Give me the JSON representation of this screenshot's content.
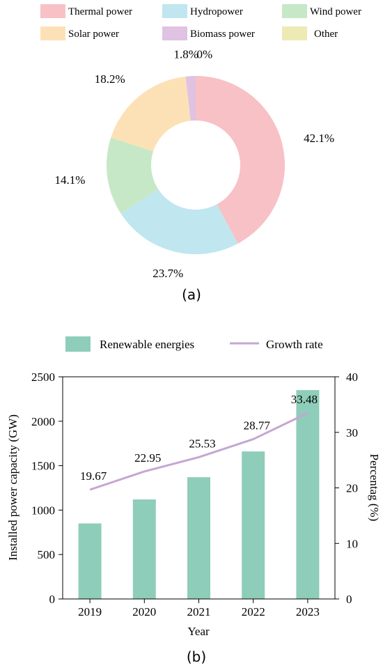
{
  "panel_a": {
    "caption": "(a)"
  },
  "panel_b": {
    "caption": "(b)"
  },
  "chart_data": [
    {
      "type": "pie",
      "donut": true,
      "legend_position": "top",
      "categories": [
        "Thermal power",
        "Hydropower",
        "Wind power",
        "Solar power",
        "Biomass power",
        "Other"
      ],
      "values": [
        42.1,
        23.7,
        14.1,
        18.2,
        1.8,
        0
      ],
      "labels": [
        "42.1%",
        "23.7%",
        "14.1%",
        "18.2%",
        "1.8%",
        "0%"
      ],
      "colors": [
        "#f7c1c6",
        "#c0e6ef",
        "#c6e8c6",
        "#fde1b6",
        "#e0c2e2",
        "#eeeab4"
      ]
    },
    {
      "type": "bar",
      "categories": [
        "2019",
        "2020",
        "2021",
        "2022",
        "2023"
      ],
      "series": [
        {
          "name": "Renewable energies",
          "type": "bar",
          "axis": "left",
          "values": [
            850,
            1120,
            1370,
            1660,
            2350
          ],
          "color": "#8ecdb9"
        },
        {
          "name": "Growth rate",
          "type": "line",
          "axis": "right",
          "values": [
            19.67,
            22.95,
            25.53,
            28.77,
            33.48
          ],
          "labels": [
            "19.67",
            "22.95",
            "25.53",
            "28.77",
            "33.48"
          ],
          "color": "#c5a6d3"
        }
      ],
      "xlabel": "Year",
      "ylabel": "Installed power capacity (GW)",
      "y2label": "Percentag (%)",
      "ylim": [
        0,
        2500
      ],
      "y2lim": [
        0,
        40
      ],
      "yticks": [
        "0",
        "500",
        "1000",
        "1500",
        "2000",
        "2500"
      ],
      "y2ticks": [
        "0",
        "10",
        "20",
        "30",
        "40"
      ],
      "legend_position": "top",
      "grid": false
    }
  ]
}
